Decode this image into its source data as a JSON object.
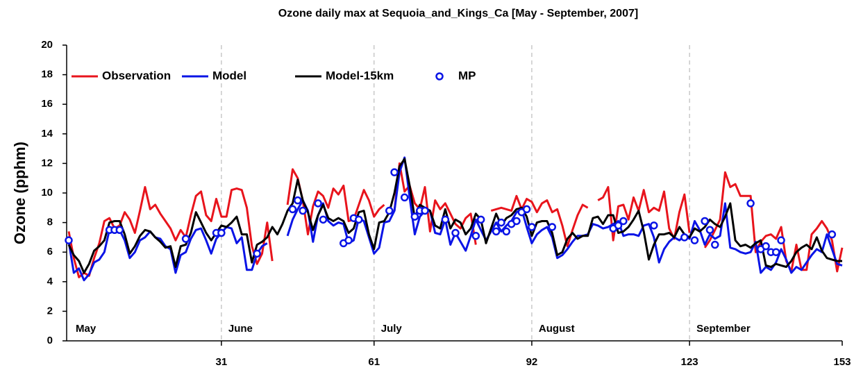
{
  "chart_data": {
    "type": "line",
    "title": "Ozone daily max at  Sequoia_and_Kings_Ca [May - September, 2007]",
    "y_label": "Ozone (pphm)",
    "xlim": [
      1,
      153
    ],
    "xticks": [
      31,
      61,
      92,
      123,
      153
    ],
    "ylim": [
      0,
      20
    ],
    "yticks": [
      0,
      2,
      4,
      6,
      8,
      10,
      12,
      14,
      16,
      18,
      20
    ],
    "months": [
      {
        "label": "May",
        "day": 1
      },
      {
        "label": "June",
        "day": 31
      },
      {
        "label": "July",
        "day": 61
      },
      {
        "label": "August",
        "day": 92
      },
      {
        "label": "September",
        "day": 123
      }
    ],
    "x": [
      1,
      2,
      3,
      4,
      5,
      6,
      7,
      8,
      9,
      10,
      11,
      12,
      13,
      14,
      15,
      16,
      17,
      18,
      19,
      20,
      21,
      22,
      23,
      24,
      25,
      26,
      27,
      28,
      29,
      30,
      31,
      32,
      33,
      34,
      35,
      36,
      37,
      38,
      39,
      40,
      41,
      42,
      43,
      44,
      45,
      46,
      47,
      48,
      49,
      50,
      51,
      52,
      53,
      54,
      55,
      56,
      57,
      58,
      59,
      60,
      61,
      62,
      63,
      64,
      65,
      66,
      67,
      68,
      69,
      70,
      71,
      72,
      73,
      74,
      75,
      76,
      77,
      78,
      79,
      80,
      81,
      82,
      83,
      84,
      85,
      86,
      87,
      88,
      89,
      90,
      91,
      92,
      93,
      94,
      95,
      96,
      97,
      98,
      99,
      100,
      101,
      102,
      103,
      104,
      105,
      106,
      107,
      108,
      109,
      110,
      111,
      112,
      113,
      114,
      115,
      116,
      117,
      118,
      119,
      120,
      121,
      122,
      123,
      124,
      125,
      126,
      127,
      128,
      129,
      130,
      131,
      132,
      133,
      134,
      135,
      136,
      137,
      138,
      139,
      140,
      141,
      142,
      143,
      144,
      145,
      146,
      147,
      148,
      149,
      150,
      151,
      152,
      153
    ],
    "series": [
      {
        "name": "Observation",
        "color": "#e8141c",
        "style": "line",
        "values": [
          7.4,
          5.6,
          4.3,
          4.6,
          4.4,
          5.6,
          6.6,
          8.1,
          8.3,
          7.6,
          7.8,
          8.7,
          8.2,
          7.3,
          8.8,
          10.4,
          8.9,
          9.2,
          8.6,
          8.1,
          7.6,
          6.8,
          7.5,
          7.0,
          8.5,
          9.8,
          10.1,
          8.5,
          8.1,
          9.6,
          8.4,
          8.4,
          10.2,
          10.3,
          10.2,
          9.0,
          6.4,
          5.2,
          5.9,
          8.0,
          5.4,
          null,
          null,
          9.2,
          11.6,
          11.0,
          9.5,
          7.2,
          9.1,
          10.1,
          9.8,
          9.0,
          10.3,
          9.9,
          10.5,
          8.1,
          8.2,
          9.2,
          10.2,
          9.5,
          8.4,
          8.9,
          9.2,
          null,
          8.8,
          12.0,
          10.1,
          10.5,
          9.3,
          8.9,
          10.4,
          7.4,
          9.5,
          8.9,
          9.3,
          8.6,
          7.9,
          7.6,
          8.3,
          8.6,
          6.5,
          null,
          null,
          8.8,
          8.9,
          9.0,
          8.9,
          8.8,
          9.8,
          8.9,
          9.6,
          9.4,
          8.7,
          9.3,
          9.5,
          8.7,
          8.9,
          7.8,
          6.4,
          7.5,
          8.5,
          9.2,
          9.0,
          null,
          9.5,
          9.7,
          10.4,
          6.8,
          9.1,
          9.2,
          8.2,
          9.7,
          8.8,
          10.2,
          8.7,
          9.0,
          8.8,
          10.1,
          7.6,
          6.9,
          8.7,
          9.9,
          7.3,
          null,
          null,
          6.3,
          6.8,
          7.5,
          8.2,
          11.4,
          10.4,
          10.6,
          9.8,
          9.8,
          9.8,
          6.0,
          6.7,
          7.1,
          7.2,
          6.9,
          7.7,
          5.4,
          4.7,
          6.5,
          4.8,
          4.8,
          7.2,
          7.6,
          8.1,
          7.6,
          6.8,
          4.7,
          6.3
        ]
      },
      {
        "name": "Model",
        "color": "#0a14e6",
        "style": "line",
        "values": [
          6.7,
          4.6,
          4.9,
          4.1,
          4.5,
          5.3,
          5.5,
          6.0,
          7.5,
          7.5,
          7.5,
          6.8,
          5.6,
          6.0,
          6.8,
          7.0,
          7.4,
          7.0,
          6.9,
          6.4,
          6.2,
          4.6,
          5.8,
          6.0,
          6.9,
          7.5,
          7.6,
          6.8,
          5.9,
          6.9,
          7.3,
          7.7,
          7.6,
          6.6,
          7.0,
          4.8,
          4.8,
          5.9,
          6.4,
          6.6,
          null,
          null,
          null,
          7.1,
          8.2,
          8.9,
          9.5,
          8.8,
          6.7,
          8.5,
          9.3,
          8.1,
          7.8,
          8.0,
          7.9,
          6.6,
          6.8,
          8.3,
          8.1,
          7.0,
          5.9,
          6.3,
          8.0,
          8.1,
          8.8,
          11.4,
          12.4,
          9.7,
          7.2,
          8.4,
          8.8,
          8.8,
          7.3,
          7.2,
          8.2,
          6.5,
          7.3,
          6.7,
          6.1,
          7.1,
          8.2,
          7.5,
          6.8,
          7.4,
          8.0,
          7.4,
          7.8,
          8.1,
          8.7,
          8.9,
          7.7,
          6.6,
          7.2,
          7.5,
          7.7,
          7.0,
          5.6,
          5.8,
          6.2,
          6.7,
          7.1,
          7.1,
          7.2,
          7.9,
          7.8,
          7.6,
          7.7,
          7.9,
          8.1,
          7.1,
          7.2,
          7.2,
          7.1,
          7.8,
          7.9,
          7.0,
          5.3,
          6.2,
          6.7,
          7.0,
          6.8,
          7.1,
          6.9,
          8.1,
          7.5,
          6.5,
          7.2,
          6.9,
          7.1,
          9.3,
          6.3,
          6.2,
          6.0,
          5.9,
          6.0,
          6.7,
          4.6,
          5.0,
          4.8,
          5.3,
          6.2,
          5.5,
          4.6,
          5.0,
          4.8,
          5.3,
          5.8,
          6.2,
          6.0,
          7.2,
          6.2,
          5.2,
          5.1
        ]
      },
      {
        "name": "Model-15km",
        "color": "#000000",
        "style": "line",
        "values": [
          6.5,
          5.8,
          5.4,
          4.6,
          5.2,
          6.1,
          6.4,
          6.8,
          8.0,
          8.1,
          8.1,
          7.2,
          5.9,
          6.4,
          7.1,
          7.5,
          7.4,
          7.0,
          6.7,
          6.3,
          6.4,
          5.0,
          6.4,
          6.5,
          7.3,
          8.7,
          8.0,
          7.3,
          6.8,
          7.3,
          7.8,
          7.7,
          8.0,
          8.4,
          7.2,
          7.2,
          5.3,
          6.5,
          6.7,
          7.0,
          7.7,
          7.2,
          7.9,
          8.8,
          9.3,
          10.9,
          9.5,
          8.7,
          7.5,
          8.5,
          9.2,
          8.3,
          8.1,
          8.3,
          8.1,
          7.3,
          7.6,
          8.7,
          8.8,
          7.2,
          6.2,
          8.0,
          8.1,
          8.7,
          10.0,
          11.8,
          12.3,
          10.5,
          8.3,
          9.2,
          9.0,
          8.8,
          7.8,
          7.6,
          8.9,
          7.6,
          8.2,
          8.0,
          7.2,
          7.6,
          8.6,
          8.2,
          6.6,
          7.6,
          8.6,
          7.8,
          8.3,
          8.5,
          8.9,
          9.0,
          8.4,
          7.1,
          8.0,
          8.1,
          8.1,
          7.3,
          5.8,
          6.0,
          6.9,
          7.3,
          6.9,
          7.1,
          7.1,
          8.3,
          8.4,
          7.9,
          8.5,
          8.5,
          7.3,
          7.4,
          7.7,
          8.2,
          8.8,
          7.4,
          5.5,
          6.5,
          7.2,
          7.2,
          7.3,
          7.0,
          7.7,
          7.2,
          7.0,
          7.6,
          7.4,
          7.7,
          8.2,
          7.9,
          7.7,
          8.4,
          9.3,
          6.8,
          6.4,
          6.5,
          6.3,
          6.6,
          6.8,
          5.1,
          5.0,
          5.2,
          5.1,
          5.0,
          5.4,
          6.0,
          6.3,
          6.5,
          6.2,
          7.0,
          6.1,
          5.6,
          5.5,
          5.4,
          5.4
        ]
      },
      {
        "name": "MP",
        "color": "#0a14e6",
        "style": "points",
        "x": [
          1,
          9,
          10,
          11,
          24,
          30,
          31,
          38,
          45,
          46,
          47,
          50,
          51,
          55,
          56,
          57,
          58,
          64,
          65,
          67,
          69,
          70,
          71,
          75,
          77,
          81,
          82,
          85,
          86,
          87,
          88,
          89,
          90,
          91,
          92,
          96,
          108,
          109,
          110,
          116,
          122,
          124,
          126,
          127,
          128,
          135,
          137,
          138,
          139,
          140,
          141,
          151
        ],
        "values": [
          6.8,
          7.5,
          7.5,
          7.5,
          6.9,
          7.3,
          7.3,
          5.9,
          8.9,
          9.5,
          8.8,
          9.3,
          8.2,
          6.6,
          6.8,
          8.3,
          8.2,
          8.8,
          11.4,
          9.7,
          8.4,
          8.8,
          8.8,
          8.2,
          7.3,
          7.1,
          8.2,
          7.4,
          8.0,
          7.4,
          7.9,
          8.1,
          8.7,
          8.9,
          7.7,
          7.7,
          7.6,
          7.8,
          8.1,
          7.8,
          7.0,
          6.8,
          8.1,
          7.5,
          6.5,
          9.3,
          6.2,
          6.4,
          6.0,
          6.0,
          6.8,
          7.2
        ]
      }
    ]
  }
}
